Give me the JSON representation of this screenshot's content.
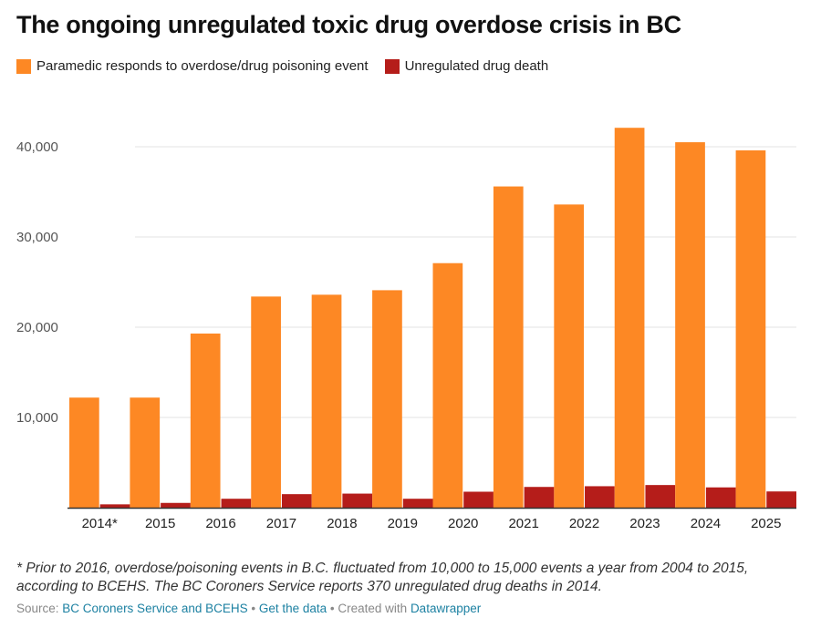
{
  "chart_data": {
    "type": "bar",
    "title": "The ongoing unregulated toxic drug overdose crisis in BC",
    "categories": [
      "2014*",
      "2015",
      "2016",
      "2017",
      "2018",
      "2019",
      "2020",
      "2021",
      "2022",
      "2023",
      "2024",
      "2025"
    ],
    "series": [
      {
        "name": "Paramedic responds to overdose/drug poisoning event",
        "color": "#fd8824",
        "values": [
          12200,
          12200,
          19300,
          23400,
          23600,
          24100,
          27100,
          35600,
          33600,
          42100,
          40500,
          39600
        ]
      },
      {
        "name": "Unregulated drug death",
        "color": "#b51d1a",
        "values": [
          370,
          530,
          990,
          1500,
          1560,
          990,
          1770,
          2300,
          2380,
          2510,
          2250,
          1800
        ]
      }
    ],
    "yticks": [
      10000,
      20000,
      30000,
      40000
    ],
    "ytick_labels": [
      "10,000",
      "20,000",
      "30,000",
      "40,000"
    ],
    "ylim": [
      0,
      44000
    ],
    "grid": true,
    "legend_placement": "top-left"
  },
  "note": "* Prior to 2016, overdose/poisoning events in B.C. fluctuated from 10,000 to 15,000 events a year from 2004 to 2015, according to BCEHS. The BC Coroners Service reports 370 unregulated drug deaths in 2014.",
  "source": {
    "prefix": "Source: ",
    "source_link": "BC Coroners Service and BCEHS",
    "sep1": " • ",
    "data_link": "Get the data",
    "sep2": " • Created with ",
    "dw_link": "Datawrapper"
  }
}
